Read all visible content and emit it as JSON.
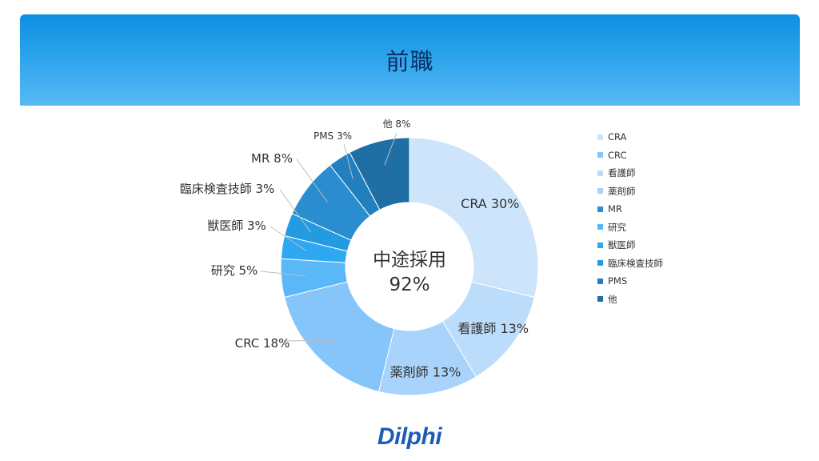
{
  "header": {
    "title": "前職"
  },
  "logo": {
    "text": "Dilphi"
  },
  "chart_data": {
    "type": "pie",
    "variant": "donut",
    "title": "前職",
    "center_label": [
      "中途採用",
      "92%"
    ],
    "legend_position": "right",
    "slices": [
      {
        "name": "CRA",
        "value": 30,
        "label": "CRA 30%",
        "color": "#cde4fb"
      },
      {
        "name": "看護師",
        "value": 13,
        "label": "看護師 13%",
        "color": "#bcdcfb"
      },
      {
        "name": "薬剤師",
        "value": 13,
        "label": "薬剤師 13%",
        "color": "#a9d3fa"
      },
      {
        "name": "CRC",
        "value": 18,
        "label": "CRC 18%",
        "color": "#86c5fa"
      },
      {
        "name": "研究",
        "value": 5,
        "label": "研究 5%",
        "color": "#5bb8f8"
      },
      {
        "name": "獣医師",
        "value": 3,
        "label": "獣医師 3%",
        "color": "#2ea9f1"
      },
      {
        "name": "臨床検査技師",
        "value": 3,
        "label": "臨床検査技師 3%",
        "color": "#239be0"
      },
      {
        "name": "MR",
        "value": 8,
        "label": "MR 8%",
        "color": "#2a8dcf"
      },
      {
        "name": "PMS",
        "value": 3,
        "label": "PMS 3%",
        "color": "#227fbd"
      },
      {
        "name": "他",
        "value": 8,
        "label": "他 8%",
        "color": "#1f6fa5"
      }
    ],
    "legend": [
      {
        "name": "CRA",
        "color": "#cde4fb"
      },
      {
        "name": "CRC",
        "color": "#86c5fa"
      },
      {
        "name": "看護師",
        "color": "#bcdcfb"
      },
      {
        "name": "薬剤師",
        "color": "#a9d3fa"
      },
      {
        "name": "MR",
        "color": "#2a8dcf"
      },
      {
        "name": "研究",
        "color": "#5bb8f8"
      },
      {
        "name": "獣医師",
        "color": "#2ea9f1"
      },
      {
        "name": "臨床検査技師",
        "color": "#239be0"
      },
      {
        "name": "PMS",
        "color": "#227fbd"
      },
      {
        "name": "他",
        "color": "#1f6fa5"
      }
    ]
  }
}
